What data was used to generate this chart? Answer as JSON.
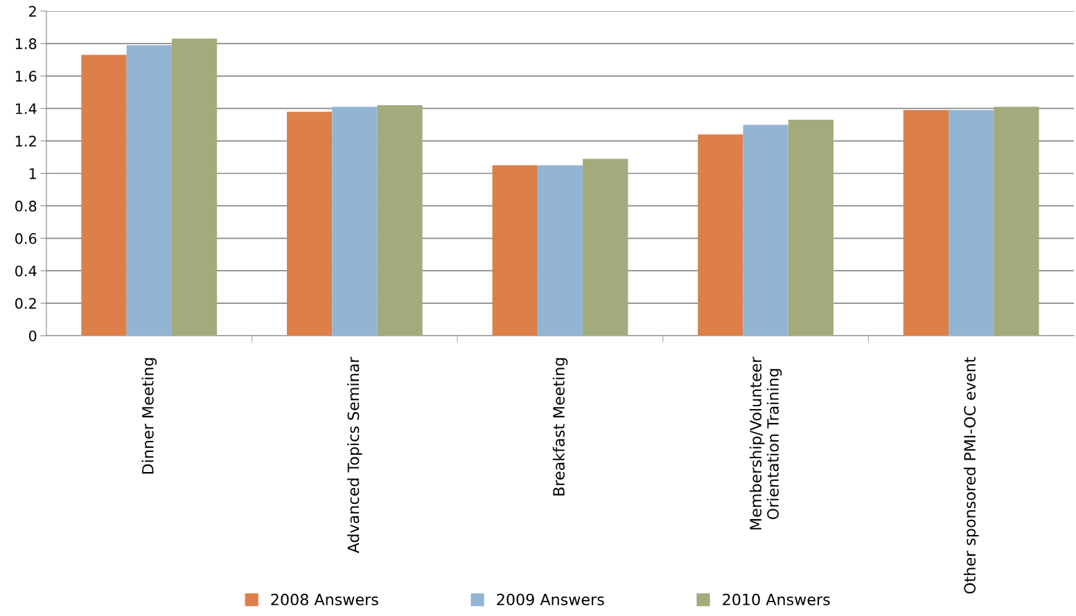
{
  "chart_data": {
    "type": "bar",
    "categories": [
      "Dinner Meeting",
      "Advanced Topics Seminar",
      "Breakfast Meeting",
      "Membership/Volunteer\nOrientation Training",
      "Other sponsored PMI-OC event"
    ],
    "series": [
      {
        "name": "2008 Answers",
        "color": "#dd7f48",
        "values": [
          1.73,
          1.38,
          1.05,
          1.24,
          1.39
        ]
      },
      {
        "name": "2009 Answers",
        "color": "#93b5d4",
        "values": [
          1.79,
          1.41,
          1.05,
          1.3,
          1.39
        ]
      },
      {
        "name": "2010 Answers",
        "color": "#a3aa7c",
        "values": [
          1.83,
          1.42,
          1.09,
          1.33,
          1.41
        ]
      }
    ],
    "ylim": [
      0,
      2
    ],
    "yticks": [
      0,
      {
        "value": 0.2,
        "label": "0.2"
      },
      {
        "value": 0.4,
        "label": "0.4"
      },
      {
        "value": 0.6,
        "label": "0.6"
      },
      {
        "value": 0.8,
        "label": "0.8"
      },
      1,
      {
        "value": 1.2,
        "label": "1.2"
      },
      {
        "value": 1.4,
        "label": "1.4"
      },
      {
        "value": 1.6,
        "label": "1.6"
      },
      {
        "value": 1.8,
        "label": "1.8"
      },
      2
    ],
    "grid": "y",
    "legend": "bottom"
  }
}
